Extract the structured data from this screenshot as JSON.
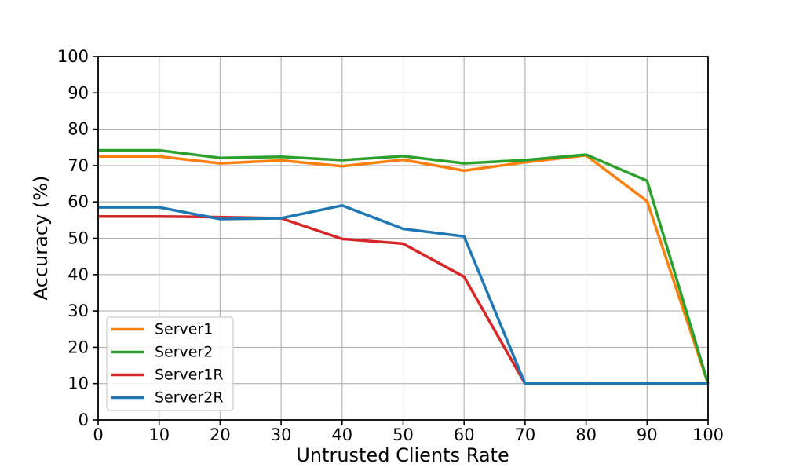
{
  "chart_data": {
    "type": "line",
    "title": "",
    "xlabel": "Untrusted Clients Rate",
    "ylabel": "Accuracy (%)",
    "x": [
      0,
      10,
      20,
      30,
      40,
      50,
      60,
      70,
      80,
      90,
      100
    ],
    "series": [
      {
        "name": "Server1",
        "color": "#ff7f0e",
        "values": [
          72.5,
          72.5,
          70.6,
          71.4,
          69.8,
          71.6,
          68.6,
          70.9,
          72.8,
          60.2,
          10
        ]
      },
      {
        "name": "Server2",
        "color": "#2ca02c",
        "values": [
          74.2,
          74.2,
          72.1,
          72.4,
          71.5,
          72.6,
          70.6,
          71.5,
          73.0,
          65.8,
          10
        ]
      },
      {
        "name": "Server1R",
        "color": "#d62728",
        "values": [
          56.0,
          56.0,
          55.8,
          55.5,
          49.8,
          48.5,
          39.4,
          10,
          10,
          10,
          10
        ]
      },
      {
        "name": "Server2R",
        "color": "#1f77b4",
        "values": [
          58.5,
          58.5,
          55.3,
          55.5,
          59.0,
          52.6,
          50.5,
          10,
          10,
          10,
          10
        ]
      }
    ],
    "xlim": [
      0,
      100
    ],
    "ylim": [
      0,
      100
    ],
    "xticks": [
      0,
      10,
      20,
      30,
      40,
      50,
      60,
      70,
      80,
      90,
      100
    ],
    "yticks": [
      0,
      10,
      20,
      30,
      40,
      50,
      60,
      70,
      80,
      90,
      100
    ],
    "grid": true,
    "grid_color": "#b0b0b0",
    "spine_color": "#000000",
    "tick_label_color": "#000000",
    "legend": {
      "position": "lower-left",
      "entries": [
        "Server1",
        "Server2",
        "Server1R",
        "Server2R"
      ],
      "border_color": "#cccccc",
      "background": "rgba(255,255,255,0.85)"
    }
  }
}
